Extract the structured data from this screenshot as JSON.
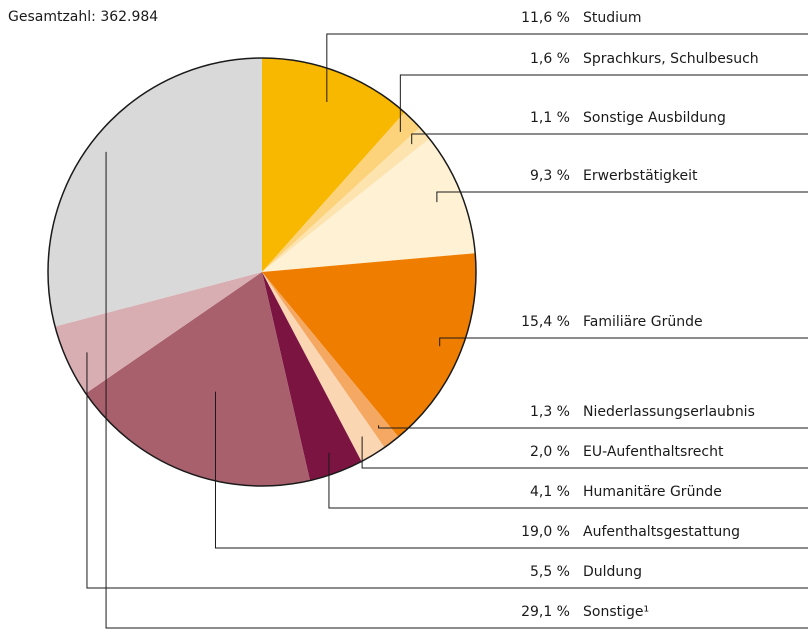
{
  "chart_data": {
    "type": "pie",
    "title": "Gesamtzahl: 362.984",
    "categories": [
      "Studium",
      "Sprachkurs, Schulbesuch",
      "Sonstige Ausbildung",
      "Erwerbstätigkeit",
      "Familiäre Gründe",
      "Niederlassungserlaubnis",
      "EU-Aufenthaltsrecht",
      "Humanitäre Gründe",
      "Aufenthaltsgestattung",
      "Duldung",
      "Sonstige¹"
    ],
    "values": [
      11.6,
      1.6,
      1.1,
      9.3,
      15.4,
      1.3,
      2.0,
      4.1,
      19.0,
      5.5,
      29.1
    ],
    "value_labels": [
      "11,6 %",
      "1,6 %",
      "1,1 %",
      "9,3 %",
      "15,4 %",
      "1,3 %",
      "2,0 %",
      "4,1 %",
      "19,0 %",
      "5,5 %",
      "29,1 %"
    ],
    "colors": [
      "#f9b800",
      "#fcd27a",
      "#fde3ad",
      "#fff1d4",
      "#ef7d00",
      "#f5a862",
      "#fbd6b3",
      "#7c1442",
      "#a8606d",
      "#d8aeb2",
      "#d9d9d9"
    ]
  }
}
